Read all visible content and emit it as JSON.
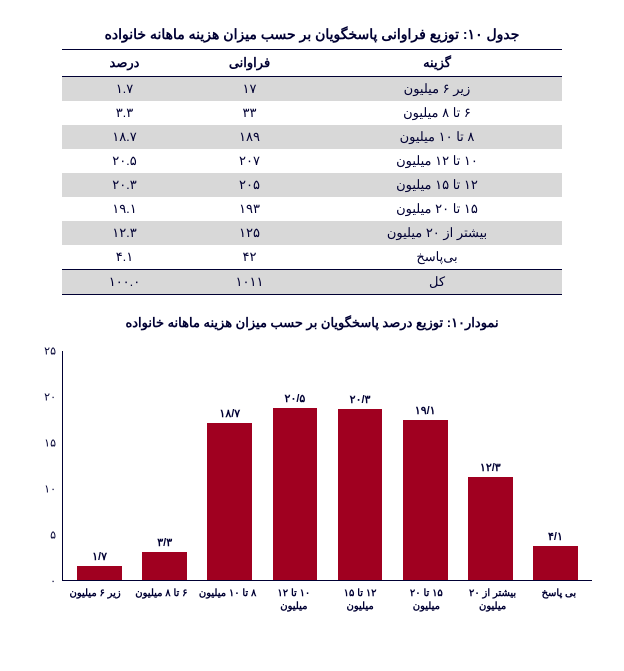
{
  "table": {
    "title": "جدول ۱۰: توزیع فراوانی پاسخگویان بر حسب میزان هزینه ماهانه خانواده",
    "headers": {
      "option": "گزینه",
      "freq": "فراوانی",
      "pct": "درصد"
    },
    "rows": [
      {
        "option": "زیر ۶ میلیون",
        "freq": "۱۷",
        "pct": "۱.۷"
      },
      {
        "option": "۶ تا ۸ میلیون",
        "freq": "۳۳",
        "pct": "۳.۳"
      },
      {
        "option": "۸ تا ۱۰ میلیون",
        "freq": "۱۸۹",
        "pct": "۱۸.۷"
      },
      {
        "option": "۱۰ تا ۱۲ میلیون",
        "freq": "۲۰۷",
        "pct": "۲۰.۵"
      },
      {
        "option": "۱۲ تا ۱۵ میلیون",
        "freq": "۲۰۵",
        "pct": "۲۰.۳"
      },
      {
        "option": "۱۵ تا ۲۰ میلیون",
        "freq": "۱۹۳",
        "pct": "۱۹.۱"
      },
      {
        "option": "بیشتر از ۲۰ میلیون",
        "freq": "۱۲۵",
        "pct": "۱۲.۳"
      },
      {
        "option": "بی‌پاسخ",
        "freq": "۴۲",
        "pct": "۴.۱"
      },
      {
        "option": "کل",
        "freq": "۱۰۱۱",
        "pct": "۱۰۰.۰"
      }
    ]
  },
  "chart": {
    "title": "نمودار۱۰: توزیع درصد پاسخگویان بر حسب میزان هزینه ماهانه خانواده",
    "type": "bar",
    "bar_color": "#a00020",
    "background_color": "#ffffff",
    "axis_color": "#000033",
    "ylim": [
      0,
      25
    ],
    "ytick_step": 5,
    "yticks": [
      "۰",
      "۵",
      "۱۰",
      "۱۵",
      "۲۰",
      "۲۵"
    ],
    "bars": [
      {
        "label": "۱/۷",
        "value": 1.7,
        "xlabel": "زیر ۶ میلیون"
      },
      {
        "label": "۳/۳",
        "value": 3.3,
        "xlabel": "۶ تا ۸ میلیون"
      },
      {
        "label": "۱۸/۷",
        "value": 18.7,
        "xlabel": "۸ تا ۱۰ میلیون"
      },
      {
        "label": "۲۰/۵",
        "value": 20.5,
        "xlabel": "۱۰ تا ۱۲ میلیون"
      },
      {
        "label": "۲۰/۳",
        "value": 20.3,
        "xlabel": "۱۲ تا ۱۵ میلیون"
      },
      {
        "label": "۱۹/۱",
        "value": 19.1,
        "xlabel": "۱۵ تا ۲۰ میلیون"
      },
      {
        "label": "۱۲/۳",
        "value": 12.3,
        "xlabel": "بیشتر از ۲۰ میلیون"
      },
      {
        "label": "۴/۱",
        "value": 4.1,
        "xlabel": "بی پاسخ"
      }
    ]
  }
}
